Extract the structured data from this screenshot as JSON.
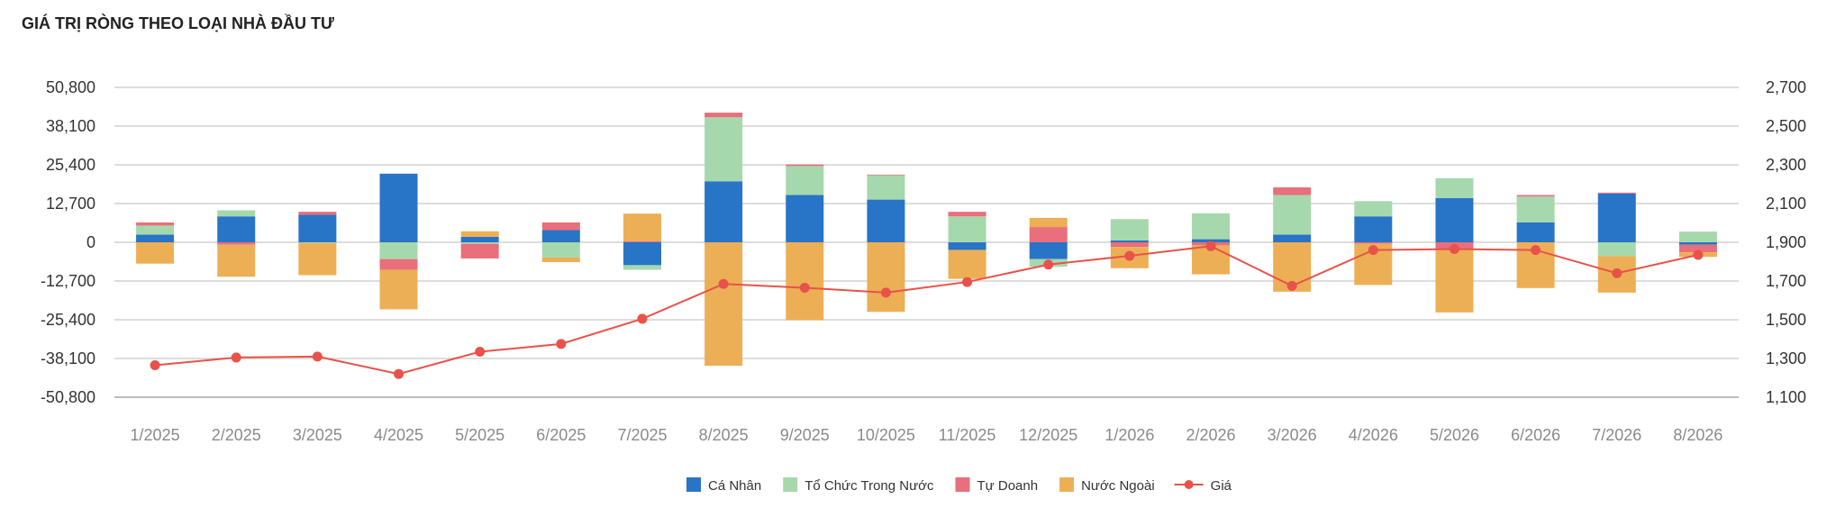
{
  "chart_data": {
    "type": "bar",
    "title": "GIÁ TRỊ RÒNG THEO LOẠI NHÀ ĐẦU TƯ",
    "stacked": true,
    "categories": [
      "1/2025",
      "2/2025",
      "3/2025",
      "4/2025",
      "5/2025",
      "6/2025",
      "7/2025",
      "8/2025",
      "9/2025",
      "10/2025",
      "11/2025",
      "12/2025",
      "1/2026",
      "2/2026",
      "3/2026",
      "4/2026",
      "5/2026",
      "6/2026",
      "7/2026",
      "8/2026"
    ],
    "y_left": {
      "ticks": [
        "50,800",
        "38,100",
        "25,400",
        "12,700",
        "0",
        "-12,700",
        "-25,400",
        "-38,100",
        "-50,800"
      ],
      "range": [
        -50800,
        50800
      ]
    },
    "y_right": {
      "ticks": [
        "2,700",
        "2,500",
        "2,300",
        "2,100",
        "1,900",
        "1,700",
        "1,500",
        "1,300",
        "1,100"
      ],
      "range": [
        1100,
        2700
      ]
    },
    "grid": true,
    "legend_position": "bottom",
    "series": [
      {
        "name": "Cá Nhân",
        "type": "bar",
        "axis": "left",
        "color": "#2874c7",
        "values": [
          2500,
          8500,
          9000,
          22500,
          1800,
          4000,
          -7500,
          20000,
          15500,
          14000,
          -2500,
          -5500,
          600,
          1000,
          2500,
          8500,
          14500,
          6500,
          16000,
          -800
        ]
      },
      {
        "name": "Tổ Chức Trong Nước",
        "type": "bar",
        "axis": "left",
        "color": "#a6d8ad",
        "values": [
          3000,
          2000,
          -300,
          -5500,
          -500,
          -5000,
          -1500,
          21000,
          9500,
          8000,
          8500,
          -2500,
          7000,
          8500,
          13000,
          5000,
          6500,
          8500,
          -4500,
          3500
        ]
      },
      {
        "name": "Tự Doanh",
        "type": "bar",
        "axis": "left",
        "color": "#e86f7b",
        "values": [
          1000,
          -800,
          1000,
          -3500,
          -4800,
          2500,
          400,
          1500,
          500,
          200,
          1500,
          5000,
          -1500,
          -1000,
          2500,
          -500,
          -2500,
          500,
          300,
          -2500
        ]
      },
      {
        "name": "Nước Ngoài",
        "type": "bar",
        "axis": "left",
        "color": "#edaf56",
        "values": [
          -7000,
          -10500,
          -10500,
          -13000,
          1800,
          -1500,
          9000,
          -40500,
          -25500,
          -22800,
          -9500,
          3000,
          -7000,
          -9500,
          -16200,
          -13500,
          -20500,
          -15000,
          -12000,
          -1500
        ]
      },
      {
        "name": "Giá",
        "type": "line",
        "axis": "right",
        "color": "#e8524a",
        "values": [
          1265,
          1305,
          1310,
          1220,
          1335,
          1375,
          1505,
          1685,
          1665,
          1640,
          1695,
          1785,
          1830,
          1880,
          1675,
          1860,
          1865,
          1860,
          1740,
          1835
        ]
      }
    ]
  }
}
